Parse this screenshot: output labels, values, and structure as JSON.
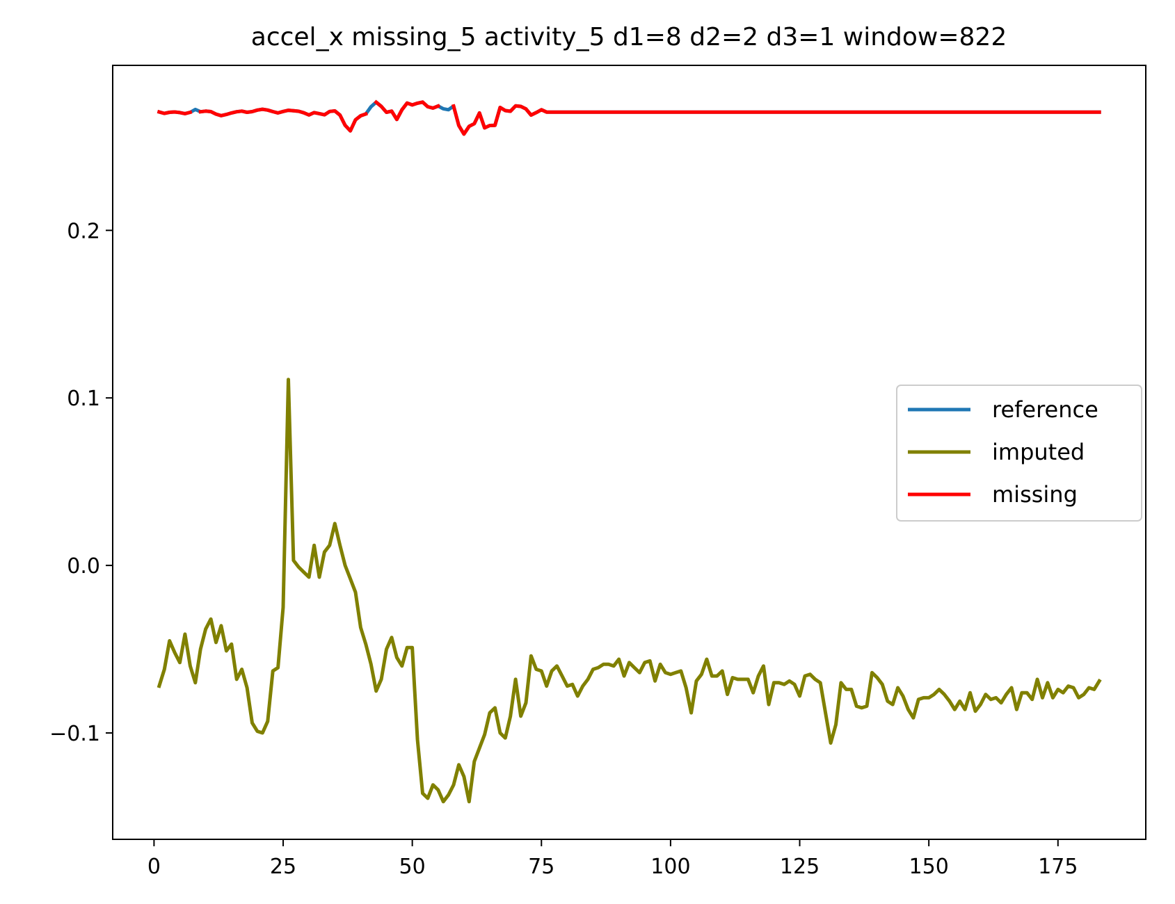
{
  "chart_data": {
    "type": "line",
    "title": "accel_x missing_5 activity_5 d1=8 d2=2 d3=1 window=822",
    "xlabel": "",
    "ylabel": "",
    "xlim": [
      -8,
      192
    ],
    "ylim": [
      -0.1635,
      0.2985
    ],
    "x_ticks": [
      0,
      25,
      50,
      75,
      100,
      125,
      150,
      175
    ],
    "x_tick_labels": [
      "0",
      "25",
      "50",
      "75",
      "100",
      "125",
      "150",
      "175"
    ],
    "y_ticks": [
      -0.1,
      0.0,
      0.1,
      0.2
    ],
    "y_tick_labels": [
      "−0.1",
      "0.0",
      "0.1",
      "0.2"
    ],
    "grid": false,
    "legend_position": "center-right",
    "colors": {
      "reference": "#1f77b4",
      "imputed": "#808000",
      "missing": "#ff0000"
    },
    "series": [
      {
        "name": "reference",
        "color": "#1f77b4",
        "x": [
          1,
          2,
          3,
          4,
          5,
          6,
          7,
          8,
          9,
          10,
          11,
          12,
          13,
          14,
          15,
          16,
          17,
          18,
          19,
          20,
          21,
          22,
          23,
          24,
          25,
          26,
          27,
          28,
          29,
          30,
          31,
          32,
          33,
          34,
          35,
          36,
          37,
          38,
          39,
          40,
          41,
          42,
          43,
          44,
          45,
          46,
          47,
          48,
          49,
          50,
          51,
          52,
          53,
          54,
          55,
          56,
          57,
          58,
          59,
          60,
          61,
          62,
          63,
          64,
          65,
          66,
          67,
          68,
          69,
          70,
          71,
          72,
          73,
          74,
          75,
          76,
          183
        ],
        "y": [
          0.2707,
          0.2698,
          0.2705,
          0.2707,
          0.2703,
          0.2697,
          0.2705,
          0.2722,
          0.2708,
          0.2712,
          0.2709,
          0.2694,
          0.2685,
          0.2692,
          0.2701,
          0.2708,
          0.2712,
          0.2705,
          0.2709,
          0.2718,
          0.2723,
          0.2718,
          0.2709,
          0.2701,
          0.271,
          0.2717,
          0.2714,
          0.2711,
          0.2702,
          0.2689,
          0.2703,
          0.2697,
          0.269,
          0.271,
          0.2713,
          0.2688,
          0.2627,
          0.2594,
          0.266,
          0.2684,
          0.2695,
          0.2738,
          0.2765,
          0.274,
          0.2705,
          0.2712,
          0.2662,
          0.272,
          0.276,
          0.2749,
          0.2759,
          0.2766,
          0.2738,
          0.273,
          0.2742,
          0.2726,
          0.272,
          0.2742,
          0.2626,
          0.2575,
          0.2621,
          0.2637,
          0.2701,
          0.2612,
          0.2626,
          0.2627,
          0.2734,
          0.2715,
          0.2711,
          0.2743,
          0.274,
          0.2725,
          0.2688,
          0.2703,
          0.272,
          0.2706,
          0.2706
        ]
      },
      {
        "name": "imputed",
        "color": "#808000",
        "x": [
          1,
          2,
          3,
          4,
          5,
          6,
          7,
          8,
          9,
          10,
          11,
          12,
          13,
          14,
          15,
          16,
          17,
          18,
          19,
          20,
          21,
          22,
          23,
          24,
          25,
          26,
          27,
          28,
          29,
          30,
          31,
          32,
          33,
          34,
          35,
          36,
          37,
          38,
          39,
          40,
          41,
          42,
          43,
          44,
          45,
          46,
          47,
          48,
          49,
          50,
          51,
          52,
          53,
          54,
          55,
          56,
          57,
          58,
          59,
          60,
          61,
          62,
          63,
          64,
          65,
          66,
          67,
          68,
          69,
          70,
          71,
          72,
          73,
          74,
          75,
          76,
          77,
          78,
          79,
          80,
          81,
          82,
          83,
          84,
          85,
          86,
          87,
          88,
          89,
          90,
          91,
          92,
          93,
          94,
          95,
          96,
          97,
          98,
          99,
          100,
          101,
          102,
          103,
          104,
          105,
          106,
          107,
          108,
          109,
          110,
          111,
          112,
          113,
          114,
          115,
          116,
          117,
          118,
          119,
          120,
          121,
          122,
          123,
          124,
          125,
          126,
          127,
          128,
          129,
          130,
          131,
          132,
          133,
          134,
          135,
          136,
          137,
          138,
          139,
          140,
          141,
          142,
          143,
          144,
          145,
          146,
          147,
          148,
          149,
          150,
          151,
          152,
          153,
          154,
          155,
          156,
          157,
          158,
          159,
          160,
          161,
          162,
          163,
          164,
          165,
          166,
          167,
          168,
          169,
          170,
          171,
          172,
          173,
          174,
          175,
          176,
          177,
          178,
          179,
          180,
          181,
          182,
          183
        ],
        "y": [
          -0.072,
          -0.062,
          -0.045,
          -0.052,
          -0.058,
          -0.041,
          -0.06,
          -0.07,
          -0.05,
          -0.038,
          -0.032,
          -0.046,
          -0.036,
          -0.051,
          -0.047,
          -0.068,
          -0.062,
          -0.073,
          -0.094,
          -0.099,
          -0.1,
          -0.093,
          -0.063,
          -0.061,
          -0.025,
          0.111,
          0.003,
          -0.001,
          -0.004,
          -0.007,
          0.012,
          -0.007,
          0.008,
          0.012,
          0.025,
          0.012,
          0.0,
          -0.008,
          -0.016,
          -0.037,
          -0.047,
          -0.059,
          -0.075,
          -0.068,
          -0.05,
          -0.043,
          -0.055,
          -0.06,
          -0.049,
          -0.049,
          -0.104,
          -0.136,
          -0.139,
          -0.131,
          -0.134,
          -0.141,
          -0.137,
          -0.131,
          -0.119,
          -0.126,
          -0.141,
          -0.117,
          -0.109,
          -0.101,
          -0.088,
          -0.085,
          -0.1,
          -0.103,
          -0.09,
          -0.068,
          -0.09,
          -0.082,
          -0.054,
          -0.062,
          -0.063,
          -0.072,
          -0.063,
          -0.06,
          -0.066,
          -0.072,
          -0.071,
          -0.078,
          -0.072,
          -0.068,
          -0.062,
          -0.061,
          -0.059,
          -0.059,
          -0.06,
          -0.056,
          -0.066,
          -0.058,
          -0.061,
          -0.064,
          -0.058,
          -0.057,
          -0.069,
          -0.059,
          -0.064,
          -0.065,
          -0.064,
          -0.063,
          -0.073,
          -0.088,
          -0.069,
          -0.065,
          -0.056,
          -0.066,
          -0.066,
          -0.063,
          -0.077,
          -0.067,
          -0.068,
          -0.068,
          -0.068,
          -0.076,
          -0.066,
          -0.06,
          -0.083,
          -0.07,
          -0.07,
          -0.071,
          -0.069,
          -0.071,
          -0.078,
          -0.066,
          -0.065,
          -0.068,
          -0.07,
          -0.088,
          -0.106,
          -0.095,
          -0.07,
          -0.074,
          -0.074,
          -0.084,
          -0.085,
          -0.084,
          -0.064,
          -0.067,
          -0.071,
          -0.081,
          -0.083,
          -0.073,
          -0.078,
          -0.086,
          -0.091,
          -0.08,
          -0.079,
          -0.079,
          -0.077,
          -0.074,
          -0.077,
          -0.081,
          -0.086,
          -0.081,
          -0.086,
          -0.076,
          -0.087,
          -0.083,
          -0.077,
          -0.08,
          -0.079,
          -0.082,
          -0.077,
          -0.073,
          -0.086,
          -0.076,
          -0.076,
          -0.08,
          -0.068,
          -0.079,
          -0.07,
          -0.079,
          -0.074,
          -0.076,
          -0.072,
          -0.073,
          -0.079,
          -0.077,
          -0.073,
          -0.074,
          -0.069
        ]
      },
      {
        "name": "missing",
        "color": "#ff0000",
        "x": [
          1,
          2,
          3,
          4,
          5,
          6,
          7,
          8,
          9,
          10,
          11,
          12,
          13,
          14,
          15,
          16,
          17,
          18,
          19,
          20,
          21,
          22,
          23,
          24,
          25,
          26,
          27,
          28,
          29,
          30,
          31,
          32,
          33,
          34,
          35,
          36,
          37,
          38,
          39,
          40,
          41,
          42,
          43,
          44,
          45,
          46,
          47,
          48,
          49,
          50,
          51,
          52,
          53,
          54,
          55,
          56,
          57,
          58,
          59,
          60,
          61,
          62,
          63,
          64,
          65,
          66,
          67,
          68,
          69,
          70,
          71,
          72,
          73,
          74,
          75,
          76,
          183
        ],
        "y": [
          0.2707,
          0.2698,
          0.2705,
          0.2707,
          0.2703,
          0.2697,
          0.2705,
          null,
          0.2708,
          0.2712,
          0.2709,
          0.2694,
          0.2685,
          0.2692,
          0.2701,
          0.2708,
          0.2712,
          0.2705,
          0.2709,
          0.2718,
          0.2723,
          0.2718,
          0.2709,
          0.2701,
          0.271,
          0.2717,
          0.2714,
          0.2711,
          0.2702,
          0.2689,
          0.2703,
          0.2697,
          0.269,
          0.271,
          0.2713,
          0.2688,
          0.2627,
          0.2594,
          0.266,
          0.2684,
          0.2695,
          null,
          0.2765,
          0.274,
          0.2705,
          0.2712,
          0.2662,
          0.272,
          0.276,
          0.2749,
          0.2759,
          0.2766,
          0.2738,
          0.273,
          0.2742,
          null,
          null,
          0.2742,
          0.2626,
          0.2575,
          0.2621,
          0.2637,
          0.2701,
          0.2612,
          0.2626,
          0.2627,
          0.2734,
          0.2715,
          0.2711,
          0.2743,
          0.274,
          0.2725,
          0.2688,
          0.2703,
          0.272,
          0.2706,
          0.2706
        ]
      }
    ]
  }
}
